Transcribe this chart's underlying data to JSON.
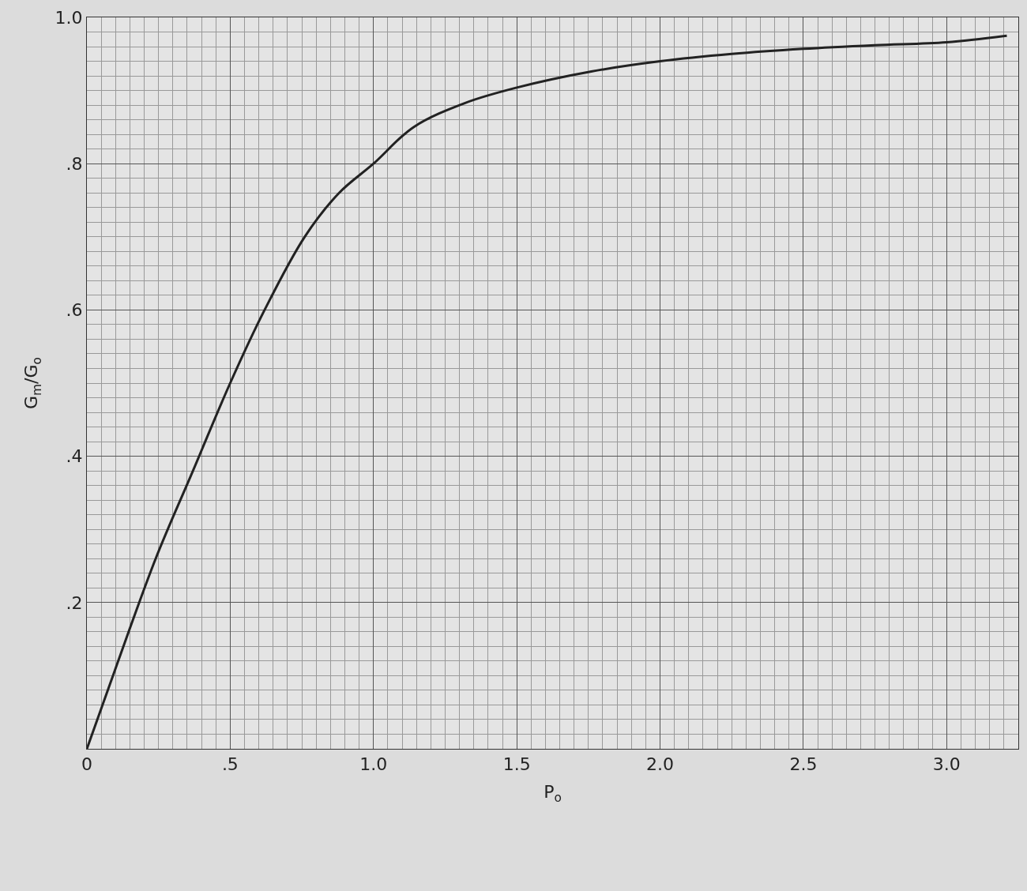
{
  "chart_data": {
    "type": "line",
    "xlabel": "P$_{o}$",
    "ylabel": "G$_{m}$/G$_{o}$",
    "x": [
      0,
      0.1,
      0.24,
      0.37,
      0.5,
      0.62,
      0.76,
      0.88,
      1.0,
      1.14,
      1.32,
      1.5,
      1.76,
      2.0,
      2.25,
      2.5,
      2.75,
      3.0,
      3.21
    ],
    "series": [
      {
        "color": "#222222",
        "values": [
          0,
          0.11,
          0.26,
          0.38,
          0.5,
          0.6,
          0.7,
          0.76,
          0.8,
          0.85,
          0.883,
          0.904,
          0.926,
          0.94,
          0.95,
          0.957,
          0.962,
          0.966,
          0.975
        ]
      }
    ],
    "xlim": [
      0,
      3.25
    ],
    "ylim": [
      0,
      1.0
    ],
    "xticks": [
      0,
      {
        "value": 0.5,
        "label": ".5"
      },
      {
        "value": 1.0,
        "label": "1.0"
      },
      {
        "value": 1.5,
        "label": "1.5"
      },
      {
        "value": 2.0,
        "label": "2.0"
      },
      {
        "value": 2.5,
        "label": "2.5"
      },
      {
        "value": 3.0,
        "label": "3.0"
      }
    ],
    "yticks": [
      {
        "value": 0.2,
        "label": ".2"
      },
      {
        "value": 0.4,
        "label": ".4"
      },
      {
        "value": 0.6,
        "label": ".6"
      },
      {
        "value": 0.8,
        "label": ".8"
      },
      {
        "value": 1.0,
        "label": "1.0"
      }
    ],
    "grid": true,
    "legend": false,
    "line_style": "solid",
    "marker": "none"
  }
}
